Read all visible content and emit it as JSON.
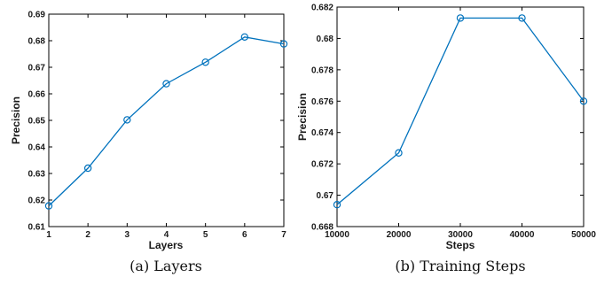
{
  "chart_data": [
    {
      "type": "line",
      "xlabel": "Layers",
      "ylabel": "Precision",
      "caption": "(a) Layers",
      "x": [
        1,
        2,
        3,
        4,
        5,
        6,
        7
      ],
      "x_ticks": [
        "1",
        "2",
        "3",
        "4",
        "5",
        "6",
        "7"
      ],
      "xlim": [
        1,
        7
      ],
      "ylim": [
        0.61,
        0.69
      ],
      "y_ticks": [
        "0.61",
        "0.62",
        "0.63",
        "0.64",
        "0.65",
        "0.66",
        "0.67",
        "0.68",
        "0.69"
      ],
      "series": [
        {
          "values": [
            0.6178,
            0.632,
            0.6502,
            0.6638,
            0.6719,
            0.6814,
            0.6788
          ],
          "color": "#0072BD"
        }
      ],
      "grid": false,
      "marker": "circle"
    },
    {
      "type": "line",
      "xlabel": "Steps",
      "ylabel": "Precision",
      "caption": "(b) Training Steps",
      "x": [
        10000,
        20000,
        30000,
        40000,
        50000
      ],
      "x_ticks": [
        "10000",
        "20000",
        "30000",
        "40000",
        "50000"
      ],
      "xlim": [
        10000,
        50000
      ],
      "ylim": [
        0.668,
        0.682
      ],
      "y_ticks": [
        "0.668",
        "0.67",
        "0.672",
        "0.674",
        "0.676",
        "0.678",
        "0.68",
        "0.682"
      ],
      "series": [
        {
          "values": [
            0.6694,
            0.6727,
            0.6813,
            0.6813,
            0.676
          ],
          "color": "#0072BD"
        }
      ],
      "grid": false,
      "marker": "circle"
    }
  ]
}
